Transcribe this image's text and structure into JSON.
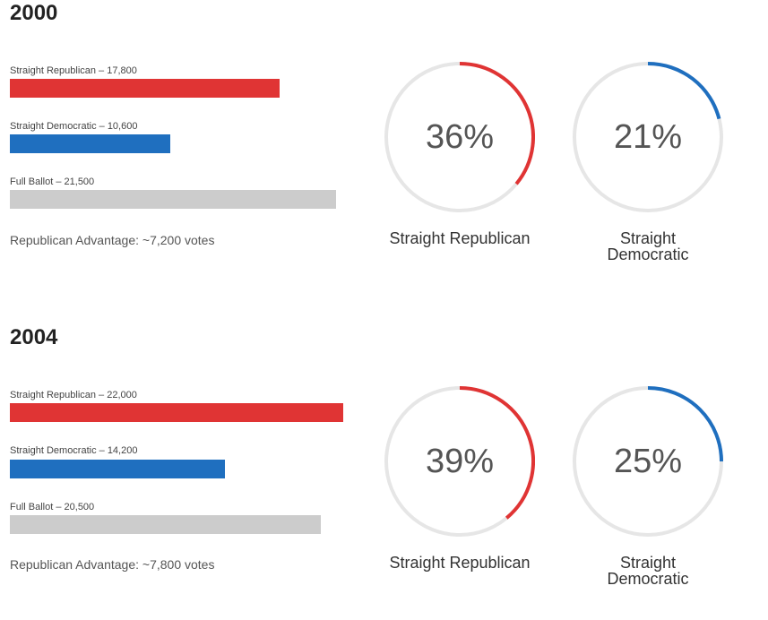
{
  "chart_data": [
    {
      "type": "bar",
      "title": "2000",
      "categories": [
        "Straight Republican",
        "Straight Democratic",
        "Full Ballot"
      ],
      "values": [
        17800,
        10600,
        21500
      ],
      "bar_labels": [
        "Straight Republican – 17,800",
        "Straight Democratic – 10,600",
        "Full Ballot – 21,500"
      ],
      "colors": [
        "#e03434",
        "#1f6fbf",
        "#cccccc"
      ],
      "xlim": [
        0,
        22700
      ],
      "advantage_text": "Republican Advantage: ~7,200 votes",
      "gauges": [
        {
          "percent": 36,
          "percent_label": "36%",
          "label": "Straight Republican",
          "color": "#e03434"
        },
        {
          "percent": 21,
          "percent_label": "21%",
          "label": "Straight Democratic",
          "color": "#1f6fbf"
        }
      ]
    },
    {
      "type": "bar",
      "title": "2004",
      "categories": [
        "Straight Republican",
        "Straight Democratic",
        "Full Ballot"
      ],
      "values": [
        22000,
        14200,
        20500
      ],
      "bar_labels": [
        "Straight Republican – 22,000",
        "Straight Democratic – 14,200",
        "Full Ballot – 20,500"
      ],
      "colors": [
        "#e03434",
        "#1f6fbf",
        "#cccccc"
      ],
      "xlim": [
        0,
        22700
      ],
      "advantage_text": "Republican Advantage: ~7,800 votes",
      "gauges": [
        {
          "percent": 39,
          "percent_label": "39%",
          "label": "Straight Republican",
          "color": "#e03434"
        },
        {
          "percent": 25,
          "percent_label": "25%",
          "label": "Straight Democratic",
          "color": "#1f6fbf"
        }
      ]
    }
  ]
}
